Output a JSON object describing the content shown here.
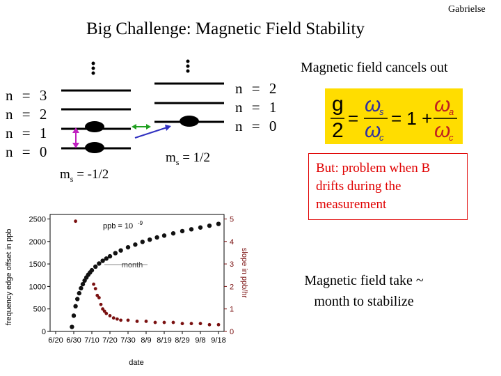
{
  "slide": {
    "author": "Gabrielse",
    "title": "Big Challenge: Magnetic Field Stability",
    "left_levels": [
      "n = 3",
      "n = 2",
      "n = 1",
      "n = 0"
    ],
    "right_levels": [
      "n = 2",
      "n = 1",
      "n = 0"
    ],
    "ms_left": "m",
    "ms_left_sub": "s",
    "ms_left_value": " = -1/2",
    "ms_right": "m",
    "ms_right_sub": "s",
    "ms_right_value": " = 1/2",
    "cancel_note": "Magnetic field cancels out",
    "formula": {
      "g": "g",
      "two": "2",
      "equals": "=",
      "omega_s": "ω",
      "s_sub": "s",
      "omega_c": "ω",
      "c_sub": "c",
      "one_plus": "= 1 +",
      "omega_a": "ω",
      "a_sub": "a",
      "omega_c2": "ω",
      "c_sub2": "c"
    },
    "problem_note": "But: problem when B drifts during the measurement",
    "stabilize_note": "Magnetic field take ~ month to stabilize"
  },
  "chart_data": {
    "type": "scatter",
    "xlabel": "date",
    "ylabel_left": "frequency edge offset in ppb",
    "ylabel_right": "slope in ppb/hr",
    "x_ticks": [
      "6/20",
      "6/30",
      "7/10",
      "7/20",
      "7/30",
      "8/9",
      "8/19",
      "8/29",
      "9/8",
      "9/18"
    ],
    "y_left_ticks": [
      0,
      500,
      1000,
      1500,
      2000,
      2500
    ],
    "y_right_ticks": [
      0,
      1,
      2,
      3,
      4,
      5
    ],
    "ylim_left": [
      0,
      2600
    ],
    "ylim_right": [
      0,
      5.2
    ],
    "annotations": [
      "ppb = 10",
      "-9",
      "month"
    ],
    "series": [
      {
        "color": "#111111",
        "axis": "left",
        "x_days": [
          9,
          10,
          11,
          12,
          13,
          14,
          15,
          16,
          17,
          18,
          19,
          20,
          22,
          24,
          26,
          28,
          30,
          33,
          36,
          40,
          44,
          48,
          52,
          56,
          60,
          65,
          70,
          75,
          80,
          85,
          90
        ],
        "values": [
          100,
          350,
          560,
          720,
          850,
          960,
          1050,
          1130,
          1200,
          1260,
          1310,
          1360,
          1440,
          1510,
          1570,
          1620,
          1670,
          1740,
          1800,
          1870,
          1930,
          1990,
          2040,
          2090,
          2130,
          2180,
          2230,
          2270,
          2310,
          2350,
          2390
        ]
      },
      {
        "color": "#7a1010",
        "axis": "right",
        "x_days": [
          11,
          21,
          22,
          23,
          24,
          25,
          26,
          27,
          28,
          30,
          32,
          34,
          36,
          40,
          45,
          50,
          55,
          60,
          65,
          70,
          75,
          80,
          85,
          90
        ],
        "values": [
          4.9,
          2.1,
          1.9,
          1.6,
          1.5,
          1.2,
          1.0,
          0.9,
          0.8,
          0.7,
          0.6,
          0.55,
          0.5,
          0.5,
          0.45,
          0.45,
          0.4,
          0.4,
          0.4,
          0.35,
          0.35,
          0.35,
          0.3,
          0.3
        ]
      }
    ]
  }
}
